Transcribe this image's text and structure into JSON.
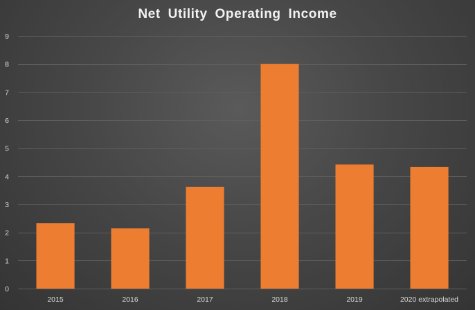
{
  "chart_data": {
    "type": "bar",
    "title": "Net Utility Operating Income",
    "xlabel": "",
    "ylabel": "",
    "categories": [
      "2015",
      "2016",
      "2017",
      "2018",
      "2019",
      "2020 extrapolated"
    ],
    "values": [
      2.33,
      2.15,
      3.62,
      8.0,
      4.42,
      4.33
    ],
    "ylim": [
      0,
      9
    ],
    "yticks": [
      "0",
      "1",
      "2",
      "3",
      "4",
      "5",
      "6",
      "7",
      "8",
      "9"
    ],
    "grid": true,
    "legend": "none",
    "colors": {
      "bar": "#ED7D31",
      "grid": "#5e5e5e",
      "text": "#d9d9d9",
      "title": "#f2f2f2"
    }
  }
}
